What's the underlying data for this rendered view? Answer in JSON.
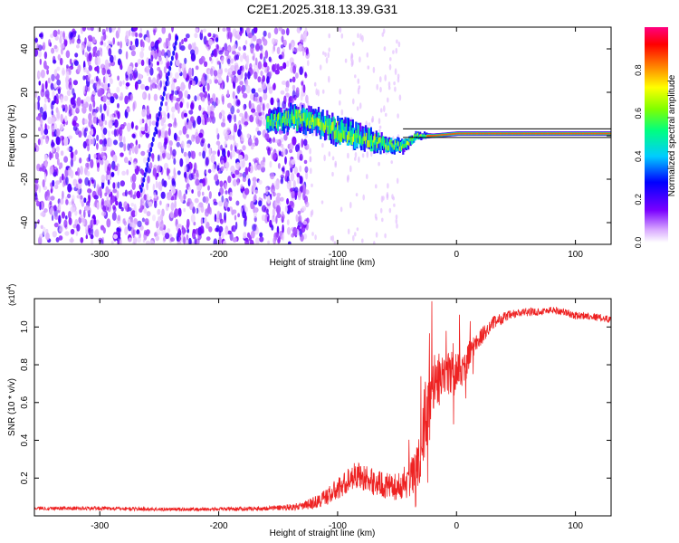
{
  "title": "C2E1.2025.318.13.39.G31",
  "chart_data": [
    {
      "type": "heatmap",
      "name": "spectrogram",
      "xlabel": "Height of straight line (km)",
      "ylabel": "Frequency (Hz)",
      "xlim": [
        -355,
        130
      ],
      "ylim": [
        -50,
        50
      ],
      "x_ticks": [
        -300,
        -200,
        -100,
        0,
        100
      ],
      "x_tick_labels": [
        "-300",
        "-200",
        "-100",
        "0",
        "100"
      ],
      "y_ticks": [
        -40,
        -20,
        0,
        20,
        40
      ],
      "y_tick_labels": [
        "-40",
        "-20",
        "0",
        "20",
        "40"
      ],
      "noise_region_x": [
        -355,
        -125
      ],
      "signal_track": {
        "x": [
          -160,
          -140,
          -120,
          -100,
          -80,
          -60,
          -45,
          -35,
          -20,
          0,
          40,
          80,
          100,
          130
        ],
        "frequency_hz": [
          6,
          8,
          7,
          2,
          -1,
          -4,
          -5,
          0,
          0,
          1,
          1,
          1,
          1,
          1
        ],
        "width_hz": [
          7,
          9,
          9,
          10,
          9,
          6,
          5,
          3,
          2,
          2,
          2,
          2,
          2,
          2
        ]
      },
      "streak": {
        "x": [
          -265,
          -235
        ],
        "frequency_hz": [
          -25,
          45
        ]
      },
      "colorbar": {
        "label": "Normalized spectral amplitude",
        "range": [
          0,
          1
        ],
        "ticks": [
          0.0,
          0.2,
          0.4,
          0.6,
          0.8
        ],
        "tick_labels": [
          "0.0",
          "0.2",
          "0.4",
          "0.6",
          "0.8"
        ]
      }
    },
    {
      "type": "line",
      "name": "snr",
      "xlabel": "Height of straight line (km)",
      "ylabel": "SNR (10 * v/v)",
      "y_multiplier": "(x10",
      "y_multiplier_exp": "4",
      "y_multiplier_close": ")",
      "xlim": [
        -355,
        130
      ],
      "ylim": [
        0,
        1.15
      ],
      "x_ticks": [
        -300,
        -200,
        -100,
        0,
        100
      ],
      "x_tick_labels": [
        "-300",
        "-200",
        "-100",
        "0",
        "100"
      ],
      "y_ticks": [
        0.2,
        0.4,
        0.6,
        0.8,
        1.0
      ],
      "y_tick_labels": [
        "0.2",
        "0.4",
        "0.6",
        "0.8",
        "1.0"
      ],
      "color": "#ee2222",
      "series": [
        {
          "name": "SNR",
          "x": [
            -355,
            -300,
            -250,
            -200,
            -160,
            -130,
            -115,
            -100,
            -85,
            -70,
            -55,
            -45,
            -38,
            -32,
            -28,
            -24,
            -20,
            -15,
            -10,
            -5,
            0,
            5,
            10,
            15,
            20,
            25,
            30,
            40,
            50,
            60,
            70,
            80,
            90,
            100,
            110,
            120,
            130
          ],
          "y": [
            0.04,
            0.04,
            0.035,
            0.035,
            0.04,
            0.05,
            0.08,
            0.14,
            0.22,
            0.18,
            0.15,
            0.16,
            0.2,
            0.3,
            0.45,
            0.6,
            0.7,
            0.72,
            0.75,
            0.76,
            0.75,
            0.78,
            0.85,
            0.9,
            0.94,
            0.98,
            1.02,
            1.05,
            1.07,
            1.08,
            1.08,
            1.09,
            1.08,
            1.06,
            1.06,
            1.05,
            1.04
          ],
          "noise_amplitude": [
            0.01,
            0.01,
            0.01,
            0.01,
            0.012,
            0.02,
            0.04,
            0.06,
            0.07,
            0.07,
            0.07,
            0.07,
            0.1,
            0.18,
            0.2,
            0.2,
            0.16,
            0.14,
            0.12,
            0.12,
            0.12,
            0.1,
            0.08,
            0.06,
            0.05,
            0.04,
            0.035,
            0.03,
            0.025,
            0.022,
            0.02,
            0.02,
            0.02,
            0.02,
            0.02,
            0.02,
            0.02
          ]
        }
      ]
    }
  ]
}
